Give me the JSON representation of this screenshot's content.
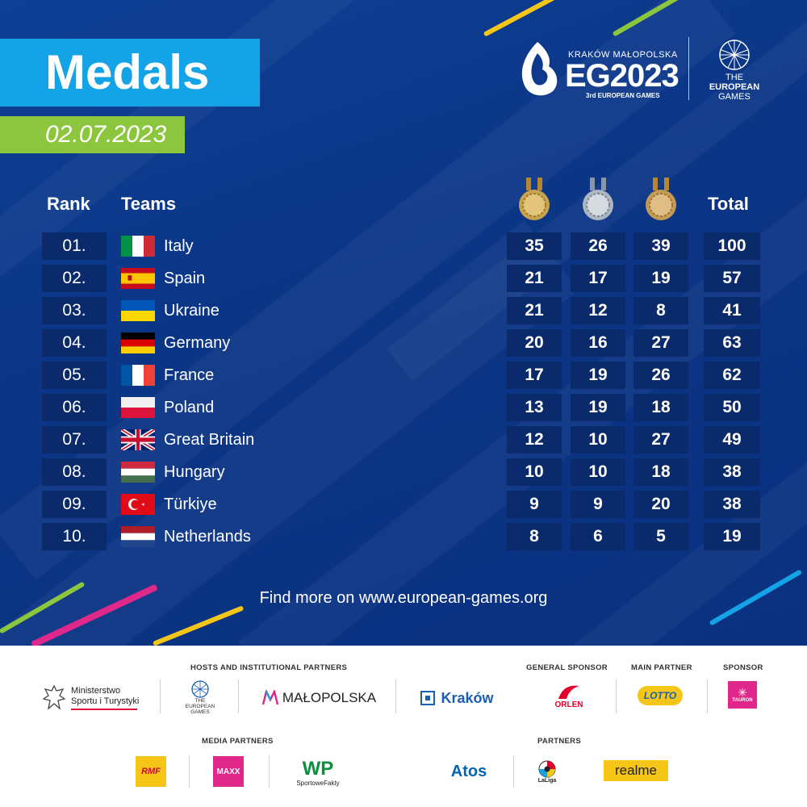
{
  "title": "Medals",
  "date": "02.07.2023",
  "logos": {
    "krakow": "KRAKÓW",
    "malopolska": "MAŁOPOLSKA",
    "eg2023": "EG2023",
    "eg_sub": "3rd EUROPEAN GAMES",
    "teg_line1": "THE",
    "teg_line2": "EUROPEAN",
    "teg_line3": "GAMES"
  },
  "headers": {
    "rank": "Rank",
    "teams": "Teams",
    "total": "Total"
  },
  "rows": [
    {
      "rank": "01.",
      "team": "Italy",
      "gold": "35",
      "silver": "26",
      "bronze": "39",
      "total": "100"
    },
    {
      "rank": "02.",
      "team": "Spain",
      "gold": "21",
      "silver": "17",
      "bronze": "19",
      "total": "57"
    },
    {
      "rank": "03.",
      "team": "Ukraine",
      "gold": "21",
      "silver": "12",
      "bronze": "8",
      "total": "41"
    },
    {
      "rank": "04.",
      "team": "Germany",
      "gold": "20",
      "silver": "16",
      "bronze": "27",
      "total": "63"
    },
    {
      "rank": "05.",
      "team": "France",
      "gold": "17",
      "silver": "19",
      "bronze": "26",
      "total": "62"
    },
    {
      "rank": "06.",
      "team": "Poland",
      "gold": "13",
      "silver": "19",
      "bronze": "18",
      "total": "50"
    },
    {
      "rank": "07.",
      "team": "Great Britain",
      "gold": "12",
      "silver": "10",
      "bronze": "27",
      "total": "49"
    },
    {
      "rank": "08.",
      "team": "Hungary",
      "gold": "10",
      "silver": "10",
      "bronze": "18",
      "total": "38"
    },
    {
      "rank": "09.",
      "team": "Türkiye",
      "gold": "9",
      "silver": "9",
      "bronze": "20",
      "total": "38"
    },
    {
      "rank": "10.",
      "team": "Netherlands",
      "gold": "8",
      "silver": "6",
      "bronze": "5",
      "total": "19"
    }
  ],
  "footer_text": "Find more on www.european-games.org",
  "sponsors": {
    "hosts_label": "HOSTS AND INSTITUTIONAL PARTNERS",
    "general_label": "GENERAL SPONSOR",
    "main_label": "MAIN PARTNER",
    "sponsor_label": "SPONSOR",
    "media_label": "MEDIA PARTNERS",
    "partners_label": "PARTNERS",
    "ministry_l1": "Ministerstwo",
    "ministry_l2": "Sportu i Turystyki",
    "teg_l1": "THE",
    "teg_l2": "EUROPEAN",
    "teg_l3": "GAMES",
    "malopolska": "MAŁOPOLSKA",
    "krakow": "Kraków",
    "orlen": "ORLEN",
    "lotto": "LOTTO",
    "tauron": "TAURON",
    "rmf": "RMF",
    "maxx": "MAXX",
    "wp": "WP",
    "sportowefakty": "SportoweFakty",
    "atos": "Atos",
    "laliga": "LaLiga",
    "realme": "realme"
  }
}
